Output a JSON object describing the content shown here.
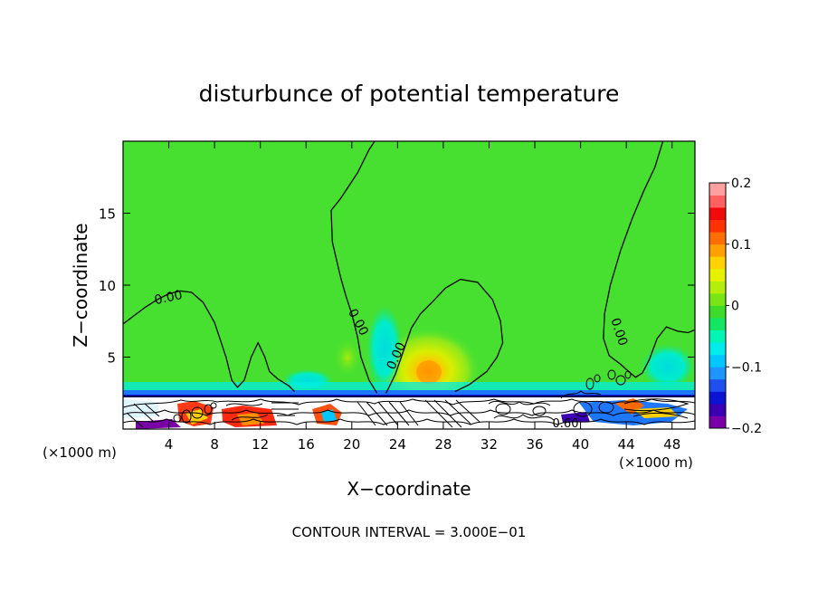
{
  "chart_data": {
    "type": "heatmap",
    "title": "disturbunce of potential temperature",
    "xlabel": "X−coordinate",
    "ylabel": "Z−coordinate",
    "x_unit": "(×1000 m)",
    "y_unit": "(×1000 m)",
    "xlim": [
      0,
      50
    ],
    "ylim": [
      0,
      20
    ],
    "x_ticks": [
      4,
      8,
      12,
      16,
      20,
      24,
      28,
      32,
      36,
      40,
      44,
      48
    ],
    "x_tick_labels": [
      "4",
      "8",
      "12",
      "16",
      "20",
      "24",
      "28",
      "32",
      "36",
      "40",
      "44",
      "48"
    ],
    "y_ticks": [
      5,
      10,
      15
    ],
    "y_tick_labels": [
      "5",
      "10",
      "15"
    ],
    "colorbar": {
      "min": -0.2,
      "max": 0.2,
      "ticks": [
        0.2,
        0.1,
        0,
        -0.1,
        -0.2
      ],
      "tick_labels": [
        "0.2",
        "0.1",
        "0",
        "−0.1",
        "−0.2"
      ],
      "colors": [
        "#7a00a8",
        "#3c00b4",
        "#0a14d2",
        "#1e50f0",
        "#1e96ff",
        "#00c8ff",
        "#00ecec",
        "#00f5b4",
        "#14e664",
        "#3cdc28",
        "#78e614",
        "#b4ee0a",
        "#e6f000",
        "#ffd200",
        "#ffa000",
        "#ff6e00",
        "#ff3200",
        "#f00a0a",
        "#ff6060",
        "#ffa0a0"
      ]
    },
    "contour_interval": "CONTOUR INTERVAL = 3.000E−01",
    "contour_labels": [
      "0.00",
      "0.00",
      "0.00",
      "0.00",
      "0.60"
    ],
    "contours": [
      {
        "level": 0,
        "points": [
          [
            0,
            7.3
          ],
          [
            1,
            7.9
          ],
          [
            2,
            8.5
          ],
          [
            3,
            9.0
          ],
          [
            4,
            9.4
          ],
          [
            5,
            9.6
          ],
          [
            6,
            9.5
          ],
          [
            7,
            8.8
          ],
          [
            8,
            7.4
          ],
          [
            9,
            5.0
          ],
          [
            9.5,
            3.4
          ],
          [
            10,
            2.9
          ],
          [
            10.6,
            3.4
          ],
          [
            11.2,
            5.0
          ],
          [
            11.8,
            6.0
          ],
          [
            12.4,
            5.0
          ],
          [
            12.8,
            4.0
          ],
          [
            13.5,
            3.5
          ],
          [
            14.5,
            3.0
          ],
          [
            15,
            2.6
          ]
        ]
      },
      {
        "level": 0,
        "points": [
          [
            22,
            20
          ],
          [
            21.5,
            19.4
          ],
          [
            20.5,
            17.8
          ],
          [
            19,
            16.0
          ],
          [
            18.2,
            15.2
          ],
          [
            18.3,
            13.0
          ],
          [
            19,
            10.6
          ],
          [
            19.5,
            9.2
          ],
          [
            20,
            8.0
          ],
          [
            20.5,
            6.4
          ],
          [
            20.8,
            5.0
          ],
          [
            21.5,
            3.4
          ],
          [
            22.2,
            2.5
          ]
        ]
      },
      {
        "level": 0,
        "points": [
          [
            23,
            2.5
          ],
          [
            23.8,
            3.8
          ],
          [
            24.5,
            5.4
          ],
          [
            25.2,
            7.0
          ],
          [
            26,
            8.0
          ],
          [
            27,
            8.8
          ],
          [
            28.2,
            9.8
          ],
          [
            29.5,
            10.4
          ],
          [
            31,
            10.2
          ],
          [
            32.3,
            9.0
          ],
          [
            33,
            7.5
          ],
          [
            33.2,
            6.0
          ],
          [
            32.7,
            5.0
          ],
          [
            31.8,
            4.0
          ],
          [
            30.3,
            3.1
          ],
          [
            29,
            2.6
          ]
        ]
      },
      {
        "level": 0,
        "points": [
          [
            47.2,
            20
          ],
          [
            46.5,
            18.2
          ],
          [
            45.5,
            16.5
          ],
          [
            44.5,
            14.6
          ],
          [
            43.5,
            12.4
          ],
          [
            42.6,
            10.0
          ],
          [
            42.1,
            8.0
          ],
          [
            42.0,
            6.3
          ],
          [
            42.5,
            5.1
          ],
          [
            43.5,
            4.5
          ],
          [
            44.2,
            4.0
          ],
          [
            44.8,
            3.6
          ],
          [
            45.4,
            3.9
          ],
          [
            46.0,
            4.8
          ],
          [
            46.7,
            6.3
          ],
          [
            47.5,
            7.1
          ],
          [
            48.5,
            6.8
          ],
          [
            49.4,
            6.7
          ],
          [
            50,
            6.9
          ]
        ]
      }
    ]
  }
}
